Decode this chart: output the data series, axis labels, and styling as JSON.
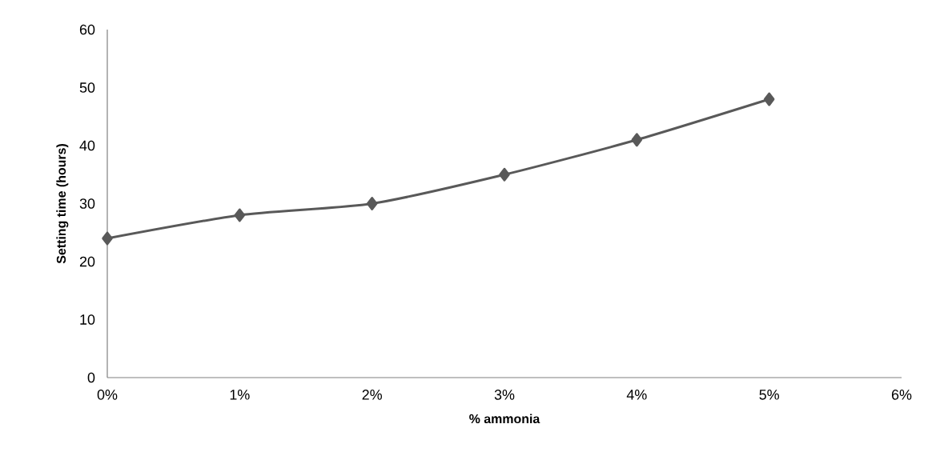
{
  "chart_data": {
    "type": "line",
    "xlabel": "% ammonia",
    "ylabel": "Setting time  (hours)",
    "x": [
      0,
      1,
      2,
      3,
      4,
      5
    ],
    "series": [
      {
        "color": "#595959",
        "values": [
          24,
          28,
          30,
          35,
          41,
          48
        ]
      }
    ],
    "xlim": [
      0,
      6
    ],
    "xticks": [
      {
        "value": 0,
        "label": "0%"
      },
      {
        "value": 1,
        "label": "1%"
      },
      {
        "value": 2,
        "label": "2%"
      },
      {
        "value": 3,
        "label": "3%"
      },
      {
        "value": 4,
        "label": "4%"
      },
      {
        "value": 5,
        "label": "5%"
      },
      {
        "value": 6,
        "label": "6%"
      }
    ],
    "ylim": [
      0,
      60
    ],
    "yticks": [
      0,
      10,
      20,
      30,
      40,
      50,
      60
    ],
    "grid": false,
    "legend": false,
    "marker": "diamond",
    "line_style": "solid"
  }
}
